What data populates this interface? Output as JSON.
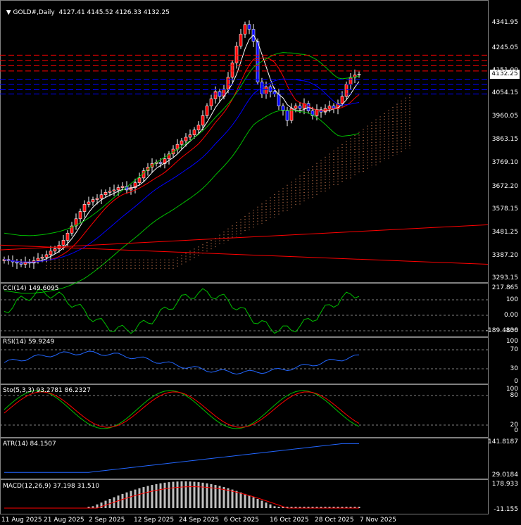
{
  "header": {
    "symbol_label": "GOLD#,Daily",
    "ohlc": "4127.41 4145.52 4126.33 4132.25"
  },
  "last_price_tag": "4132.25",
  "colors": {
    "background": "#000000",
    "grid": "#2a2a2a",
    "bull_candle": "#ff0000",
    "bear_candle": "#0000ff",
    "bollinger": "#00c000",
    "ma_fast": "#ffffff",
    "ma_mid": "#ff0000",
    "ma_slow": "#0000ff",
    "cloud": "#ff9966",
    "resistance": "#ff0000",
    "support": "#0000ff"
  },
  "price_axis": [
    "4341.95",
    "4245.05",
    "4151.00",
    "4054.15",
    "3960.05",
    "3863.15",
    "3769.10",
    "3672.20",
    "3578.15",
    "3481.25",
    "3387.20",
    "3293.15"
  ],
  "cci": {
    "label": "CCI(14) 149.6095",
    "axis": [
      "217.865",
      "100",
      "0.00",
      "-100",
      "-189.4836"
    ]
  },
  "rsi": {
    "label": "RSI(14) 59.9249",
    "axis": [
      "100",
      "70",
      "30",
      "0"
    ]
  },
  "stoch": {
    "label": "Sto(5,3,3) 93.2781 86.2327",
    "axis": [
      "100",
      "80",
      "20",
      "0"
    ]
  },
  "atr": {
    "label": "ATR(14) 84.1507",
    "axis": [
      "141.8187",
      "29.0184"
    ]
  },
  "macd": {
    "label": "MACD(12,26,9) 37.198 31.510",
    "axis": [
      "178.933",
      "-11.155"
    ]
  },
  "dates": [
    "11 Aug 2025",
    "21 Aug 2025",
    "2 Sep 2025",
    "12 Sep 2025",
    "24 Sep 2025",
    "6 Oct 2025",
    "16 Oct 2025",
    "28 Oct 2025",
    "7 Nov 2025"
  ]
}
